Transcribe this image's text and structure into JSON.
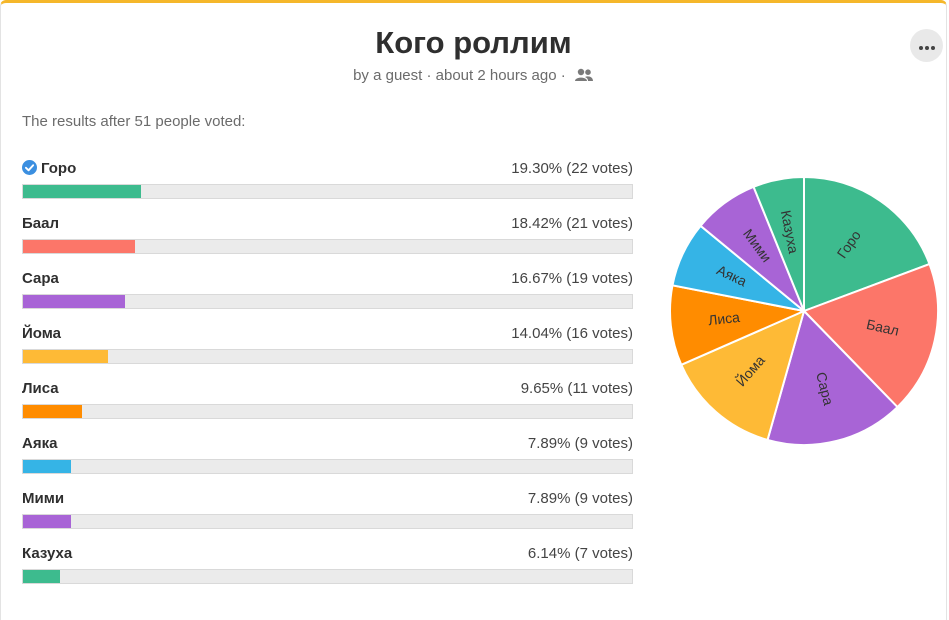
{
  "poll": {
    "title": "Кого роллим",
    "meta": "by a guest · about 2 hours ago ·",
    "summary": "The results after 51 people voted:"
  },
  "icons": {
    "more": "more-dots-icon",
    "people": "people-icon",
    "check": "check-circle-icon"
  },
  "colors": {
    "accent": "#f5b72a",
    "check": "#3b8fe0"
  },
  "chart_data": {
    "type": "pie",
    "title": "",
    "slices": [
      {
        "label": "Горо",
        "percent_text": "19.30%",
        "votes_text": "(22 votes)",
        "value": 22,
        "color": "#3dbb8e",
        "winner": true
      },
      {
        "label": "Баал",
        "percent_text": "18.42%",
        "votes_text": "(21 votes)",
        "value": 21,
        "color": "#fc7669",
        "winner": false
      },
      {
        "label": "Сара",
        "percent_text": "16.67%",
        "votes_text": "(19 votes)",
        "value": 19,
        "color": "#a864d6",
        "winner": false
      },
      {
        "label": "Йома",
        "percent_text": "14.04%",
        "votes_text": "(16 votes)",
        "value": 16,
        "color": "#feba36",
        "winner": false
      },
      {
        "label": "Лиса",
        "percent_text": "9.65%",
        "votes_text": "(11 votes)",
        "value": 11,
        "color": "#ff8c00",
        "winner": false
      },
      {
        "label": "Аяка",
        "percent_text": "7.89%",
        "votes_text": "(9 votes)",
        "value": 9,
        "color": "#35b4e6",
        "winner": false
      },
      {
        "label": "Мими",
        "percent_text": "7.89%",
        "votes_text": "(9 votes)",
        "value": 9,
        "color": "#a864d6",
        "winner": false
      },
      {
        "label": "Казуха",
        "percent_text": "6.14%",
        "votes_text": "(7 votes)",
        "value": 7,
        "color": "#3dbb8e",
        "winner": false
      }
    ]
  }
}
